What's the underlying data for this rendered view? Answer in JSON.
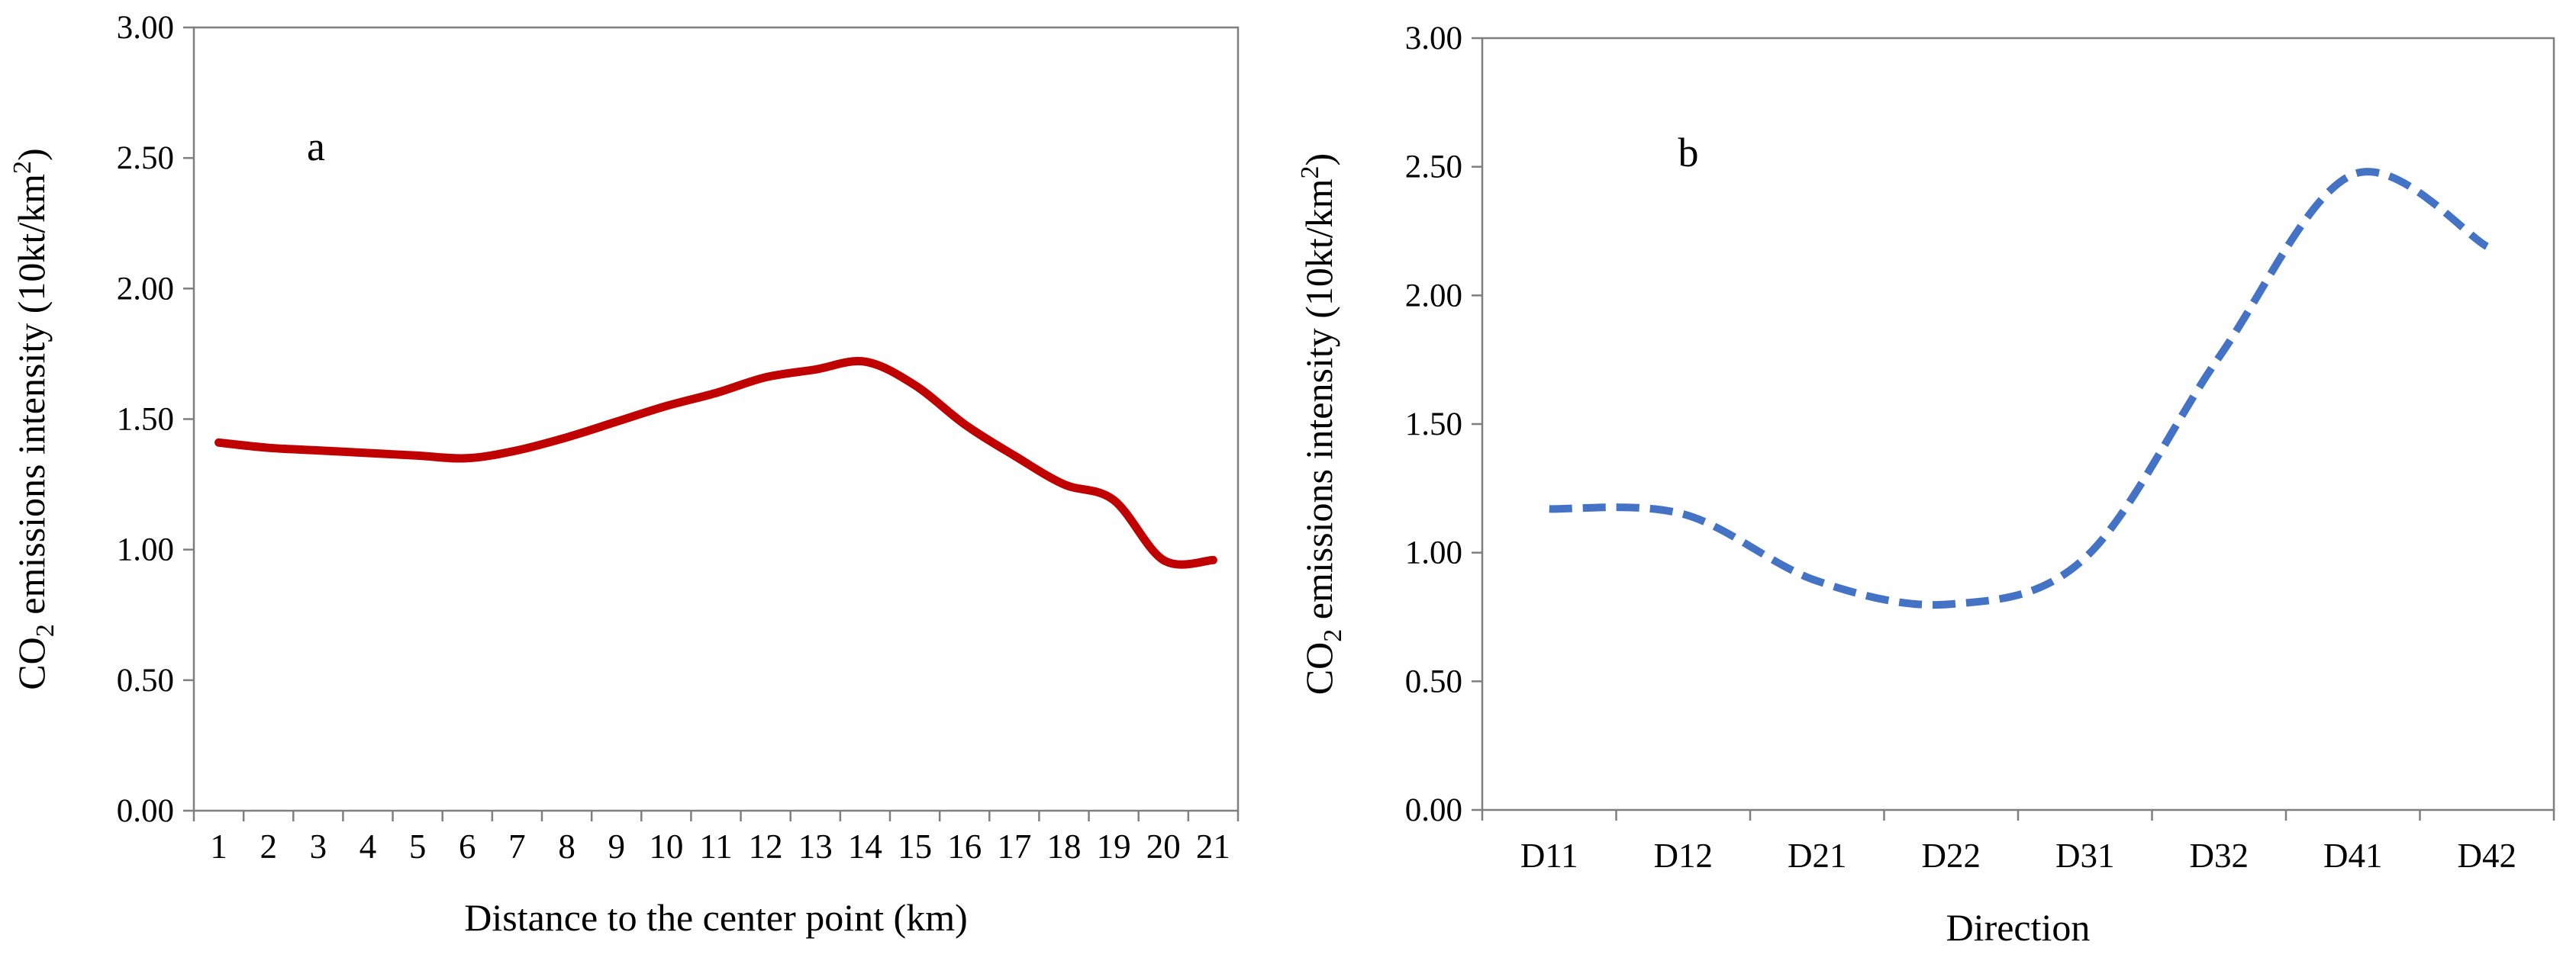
{
  "chart_data": [
    {
      "panel": "a",
      "type": "line",
      "xlabel": "Distance to the center point (km)",
      "ylabel": {
        "prefix": "CO",
        "subscript": "2",
        "text": " emissions intensity (10kt/km",
        "superscript": "2",
        "suffix": ")"
      },
      "categories": [
        "1",
        "2",
        "3",
        "4",
        "5",
        "6",
        "7",
        "8",
        "9",
        "10",
        "11",
        "12",
        "13",
        "14",
        "15",
        "16",
        "17",
        "18",
        "19",
        "20",
        "21"
      ],
      "series": [
        {
          "name": "a",
          "color": "#c00000",
          "style": "solid",
          "values": [
            1.41,
            1.39,
            1.38,
            1.37,
            1.36,
            1.35,
            1.38,
            1.43,
            1.49,
            1.55,
            1.6,
            1.66,
            1.69,
            1.72,
            1.63,
            1.48,
            1.36,
            1.25,
            1.19,
            0.96,
            0.96
          ]
        }
      ],
      "ylim": [
        0,
        3
      ],
      "yticks": [
        "0.00",
        "0.50",
        "1.00",
        "1.50",
        "2.00",
        "2.50",
        "3.00"
      ],
      "grid": false
    },
    {
      "panel": "b",
      "type": "line",
      "xlabel": "Direction",
      "ylabel": {
        "prefix": "CO",
        "subscript": "2",
        "text": " emissions intensity (10kt/km",
        "superscript": "2",
        "suffix": ")"
      },
      "categories": [
        "D11",
        "D12",
        "D21",
        "D22",
        "D31",
        "D32",
        "D41",
        "D42"
      ],
      "series": [
        {
          "name": "b",
          "color": "#4472c4",
          "style": "dashed",
          "values": [
            1.17,
            1.15,
            0.89,
            0.8,
            0.98,
            1.76,
            2.47,
            2.19
          ]
        }
      ],
      "ylim": [
        0,
        3
      ],
      "yticks": [
        "0.00",
        "0.50",
        "1.00",
        "1.50",
        "2.00",
        "2.50",
        "3.00"
      ],
      "grid": false
    }
  ]
}
